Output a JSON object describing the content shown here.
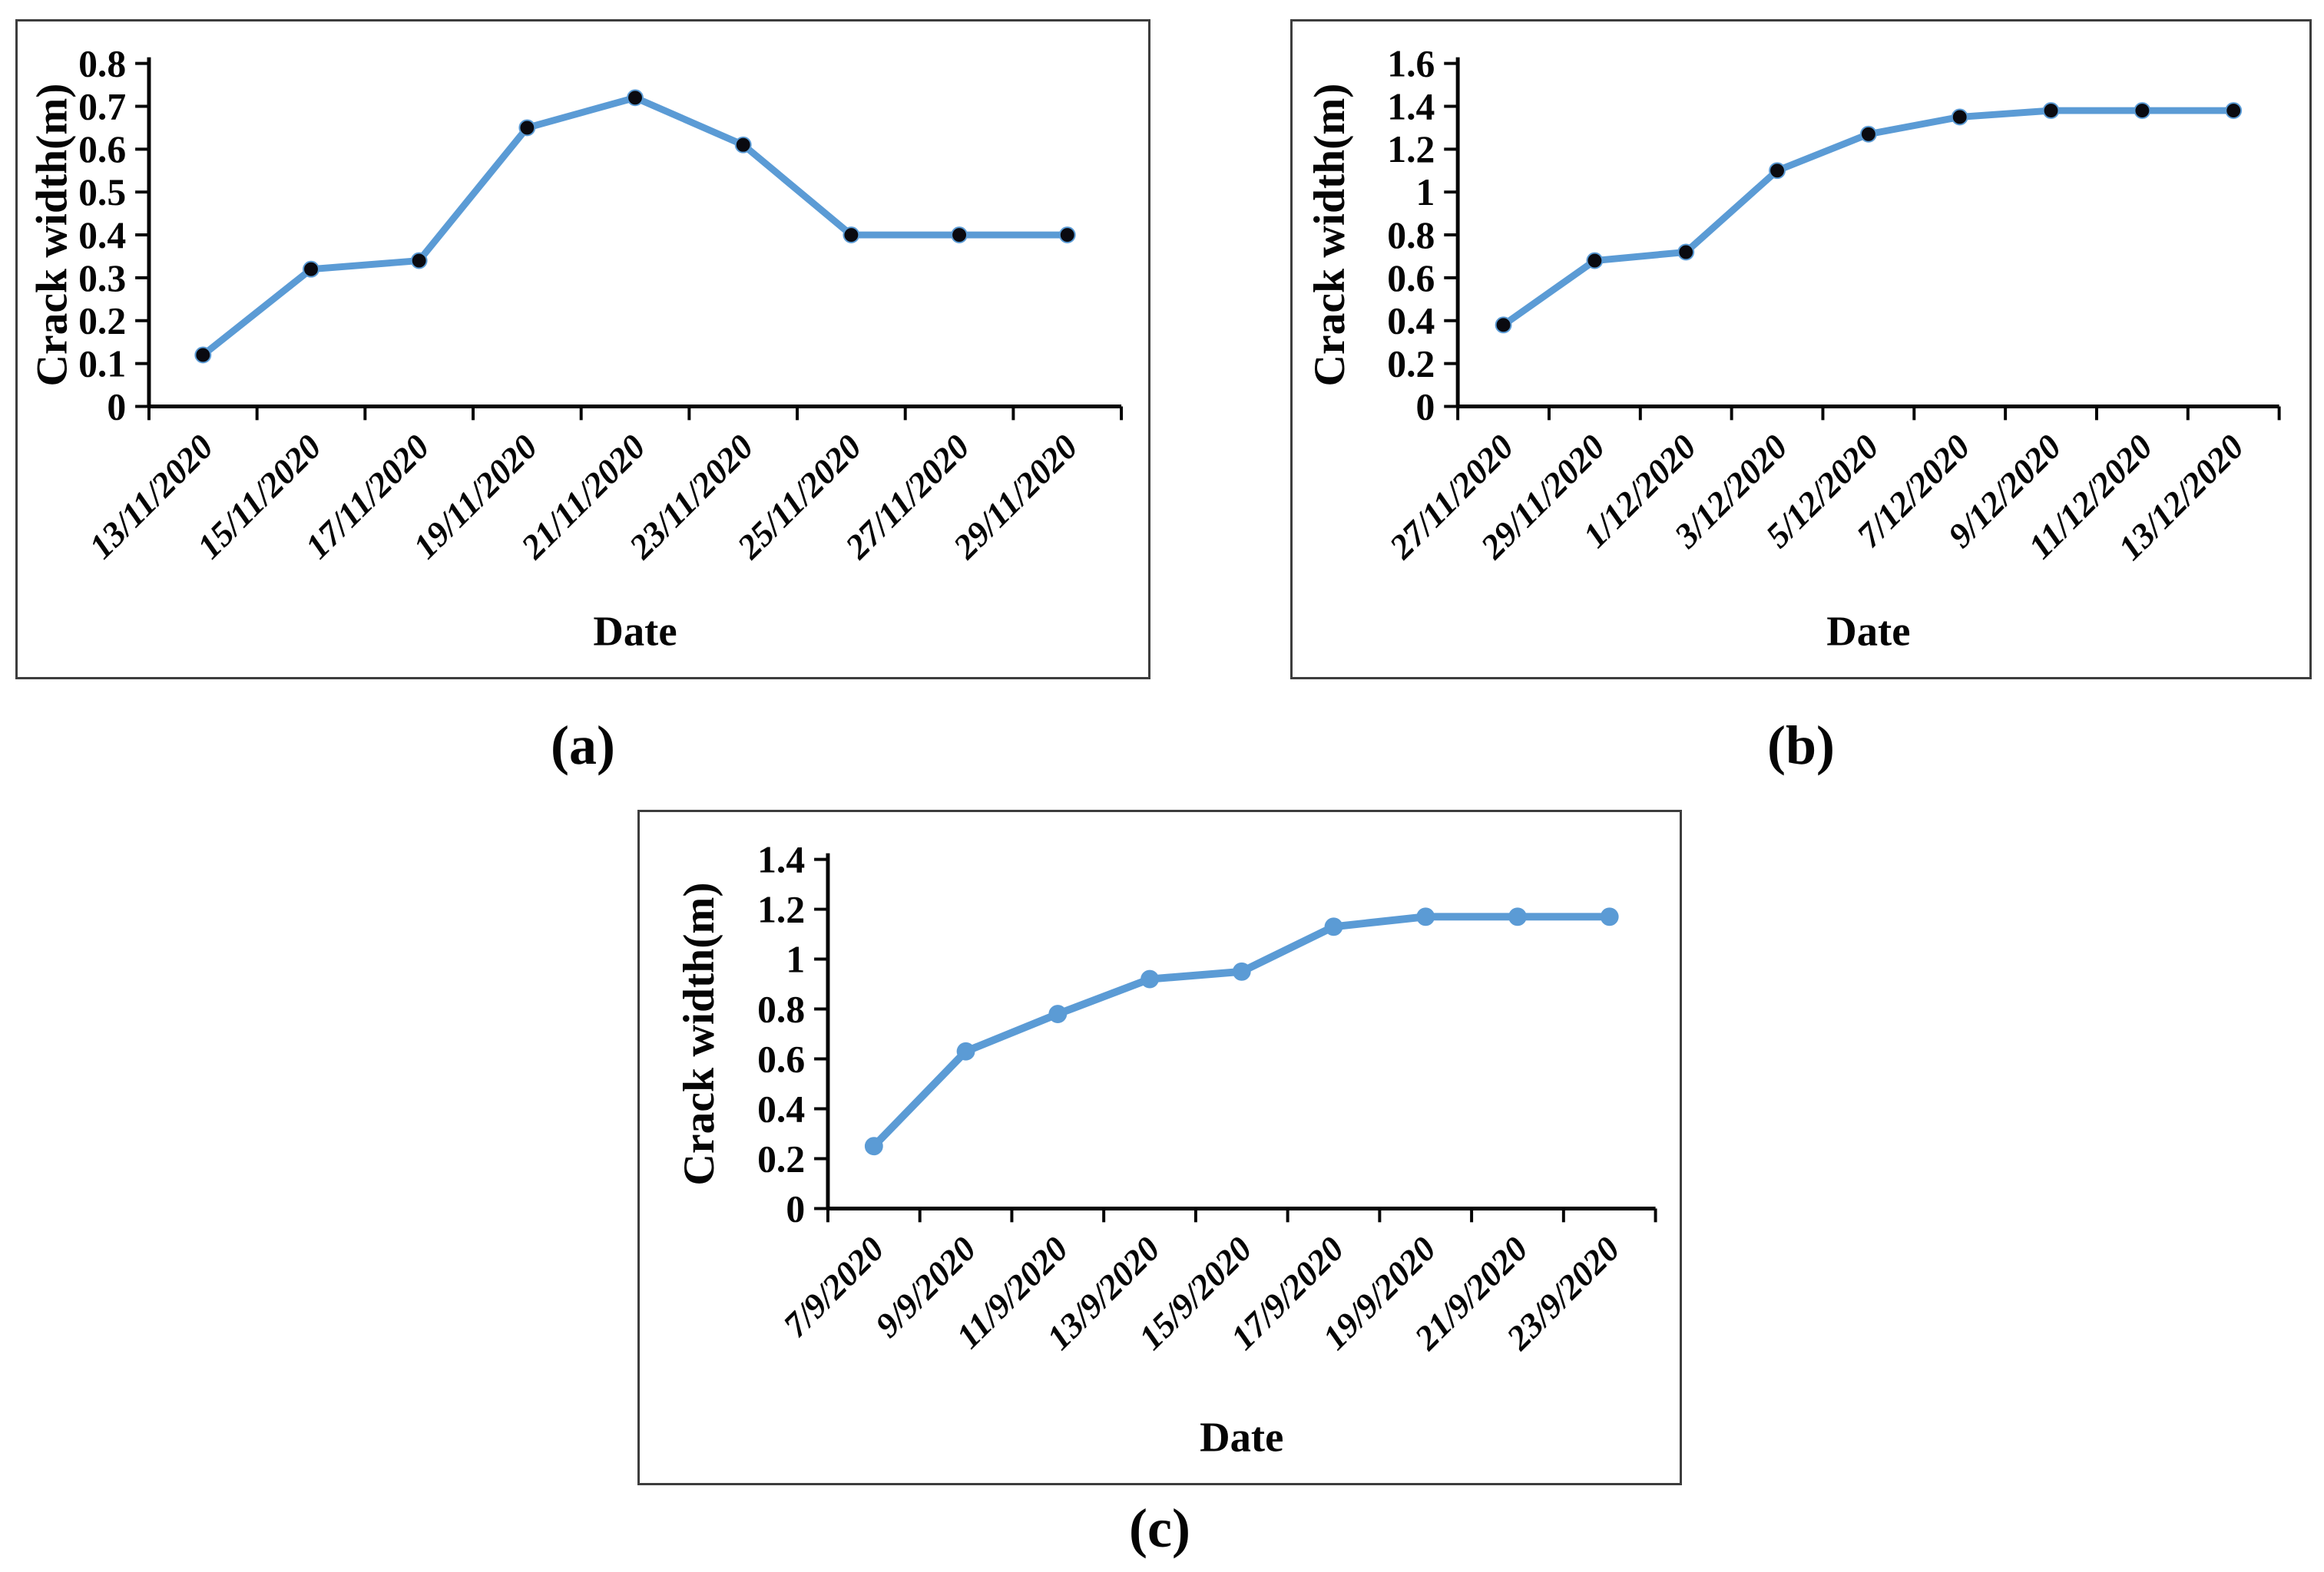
{
  "figure": {
    "sublabels": [
      "(a)",
      "(b)",
      "(c)"
    ]
  },
  "chart_data": [
    {
      "id": "a",
      "type": "line",
      "title": "",
      "ylabel": "Crack width(m)",
      "xlabel": "Date",
      "categories": [
        "13/11/2020",
        "15/11/2020",
        "17/11/2020",
        "19/11/2020",
        "21/11/2020",
        "23/11/2020",
        "25/11/2020",
        "27/11/2020",
        "29/11/2020"
      ],
      "values": [
        0.12,
        0.32,
        0.34,
        0.65,
        0.72,
        0.61,
        0.4,
        0.4,
        0.4
      ],
      "ylim": [
        0,
        0.8
      ],
      "ytick_labels": [
        "0",
        "0.1",
        "0.2",
        "0.3",
        "0.4",
        "0.5",
        "0.6",
        "0.7",
        "0.8"
      ],
      "grid": false,
      "legend": "none",
      "line_color": "#5b9bd5",
      "marker_color": "#0a0a10"
    },
    {
      "id": "b",
      "type": "line",
      "title": "",
      "ylabel": "Crack width(m)",
      "xlabel": "Date",
      "categories": [
        "27/11/2020",
        "29/11/2020",
        "1/12/2020",
        "3/12/2020",
        "5/12/2020",
        "7/12/2020",
        "9/12/2020",
        "11/12/2020",
        "13/12/2020"
      ],
      "values": [
        0.38,
        0.68,
        0.72,
        1.1,
        1.27,
        1.35,
        1.38,
        1.38,
        1.38
      ],
      "ylim": [
        0,
        1.6
      ],
      "ytick_labels": [
        "0",
        "0.2",
        "0.4",
        "0.6",
        "0.8",
        "1",
        "1.2",
        "1.4",
        "1.6"
      ],
      "grid": false,
      "legend": "none",
      "line_color": "#5b9bd5",
      "marker_color": "#0a0a10"
    },
    {
      "id": "c",
      "type": "line",
      "title": "",
      "ylabel": "Crack width(m)",
      "xlabel": "Date",
      "categories": [
        "7/9/2020",
        "9/9/2020",
        "11/9/2020",
        "13/9/2020",
        "15/9/2020",
        "17/9/2020",
        "19/9/2020",
        "21/9/2020",
        "23/9/2020"
      ],
      "values": [
        0.25,
        0.63,
        0.78,
        0.92,
        0.95,
        1.13,
        1.17,
        1.17,
        1.17
      ],
      "ylim": [
        0,
        1.4
      ],
      "ytick_labels": [
        "0",
        "0.2",
        "0.4",
        "0.6",
        "0.8",
        "1",
        "1.2",
        "1.4"
      ],
      "grid": false,
      "legend": "none",
      "line_color": "#5b9bd5",
      "marker_color": "#5b9bd5"
    }
  ]
}
